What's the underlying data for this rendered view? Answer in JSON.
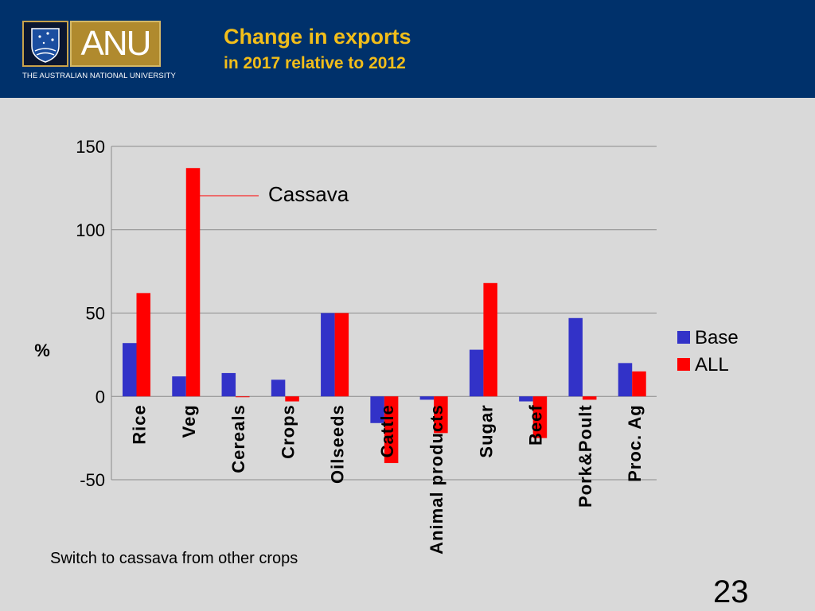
{
  "header": {
    "logo_text": "ANU",
    "university": "THE AUSTRALIAN NATIONAL UNIVERSITY",
    "title": "Change in exports",
    "subtitle": "in 2017 relative to 2012"
  },
  "chart_data": {
    "type": "bar",
    "categories": [
      "Rice",
      "Veg",
      "Cereals",
      "Crops",
      "Oilseeds",
      "Cattle",
      "Animal products",
      "Sugar",
      "Beef",
      "Pork&Poult",
      "Proc. Ag"
    ],
    "series": [
      {
        "name": "Base",
        "color": "#3232c8",
        "values": [
          32,
          12,
          14,
          10,
          50,
          -16,
          -2,
          28,
          -3,
          47,
          20
        ]
      },
      {
        "name": "ALL",
        "color": "#ff0000",
        "values": [
          62,
          137,
          0,
          -3,
          50,
          -40,
          -22,
          68,
          -25,
          -2,
          15
        ]
      }
    ],
    "ylabel": "%",
    "ylim": [
      -50,
      150
    ],
    "yticks": [
      -50,
      0,
      50,
      100,
      150
    ],
    "grid": true,
    "legend": "right",
    "annotation": "Cassava"
  },
  "footer": {
    "note": "Switch to cassava from other crops",
    "page_number": "23"
  }
}
